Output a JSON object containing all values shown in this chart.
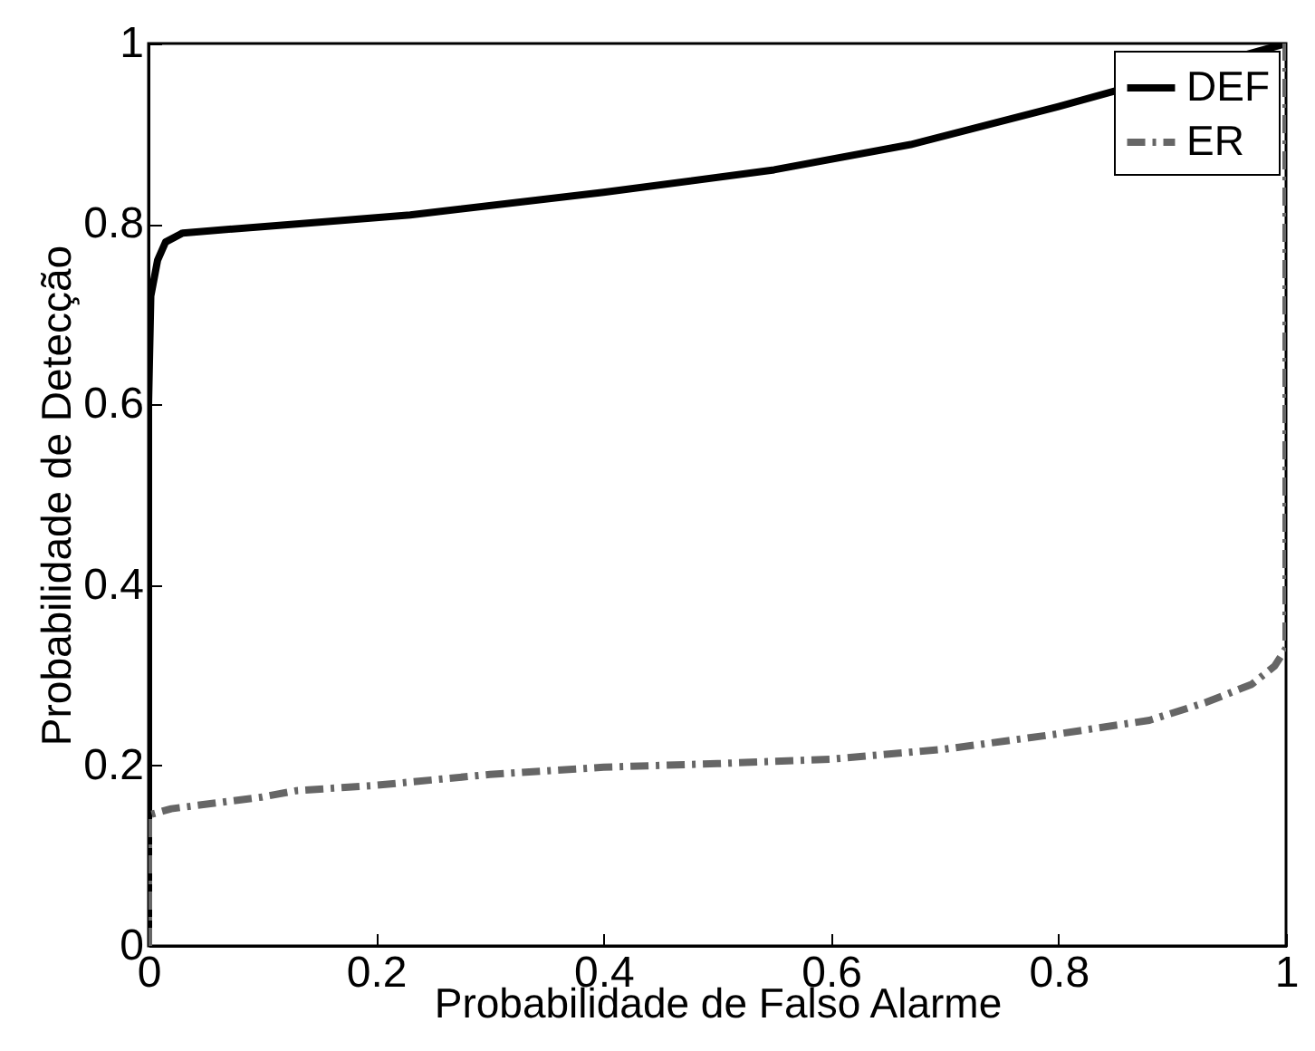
{
  "chart_data": {
    "type": "line",
    "xlabel": "Probabilidade de Falso Alarme",
    "ylabel": "Probabilidade de Detecção",
    "xlim": [
      0,
      1
    ],
    "ylim": [
      0,
      1
    ],
    "xticks": [
      0,
      0.2,
      0.4,
      0.6,
      0.8,
      1
    ],
    "yticks": [
      0,
      0.2,
      0.4,
      0.6,
      0.8,
      1
    ],
    "grid": false,
    "legend": "top right",
    "marker": "none",
    "series": [
      {
        "name": "DEF",
        "color": "#000000",
        "line_style": "solid",
        "x": [
          0,
          0,
          0.002,
          0.008,
          0.015,
          0.03,
          0.13,
          0.23,
          0.4,
          0.55,
          0.67,
          0.8,
          1
        ],
        "values": [
          0,
          0.6,
          0.72,
          0.76,
          0.78,
          0.79,
          0.8,
          0.81,
          0.835,
          0.86,
          0.888,
          0.93,
          1
        ]
      },
      {
        "name": "ER",
        "color": "#666666",
        "line_style": "dashed",
        "x": [
          0,
          0,
          0.02,
          0.1,
          0.13,
          0.2,
          0.3,
          0.4,
          0.5,
          0.6,
          0.7,
          0.8,
          0.88,
          0.93,
          0.97,
          0.99,
          1,
          1
        ],
        "values": [
          0,
          0.145,
          0.152,
          0.165,
          0.172,
          0.178,
          0.19,
          0.198,
          0.202,
          0.207,
          0.218,
          0.235,
          0.25,
          0.27,
          0.29,
          0.31,
          0.33,
          1
        ]
      }
    ]
  }
}
